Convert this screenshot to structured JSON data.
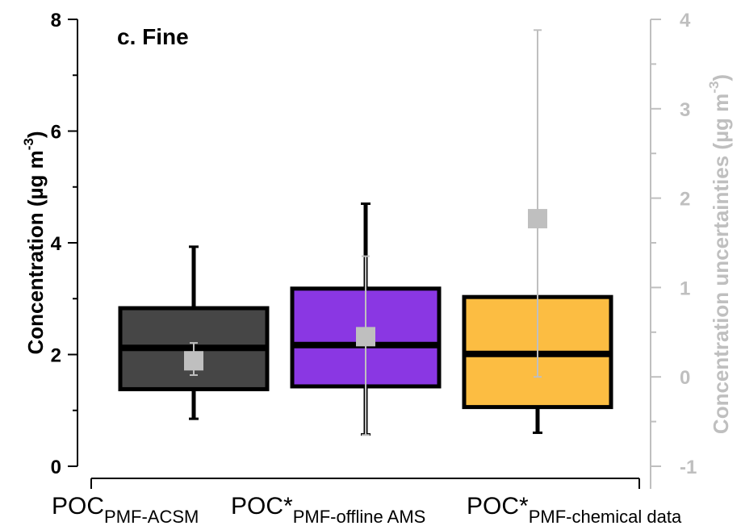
{
  "chart_data": {
    "type": "box",
    "panel_label": "c. Fine",
    "ylabel_left": {
      "main": "Concentration (µg m",
      "sup": "-3",
      "close": ")"
    },
    "ylabel_right": {
      "main": "Concentration uncertainties (µg m",
      "sup": "-3",
      "close": ")"
    },
    "ylim_left": [
      0,
      8
    ],
    "ylim_right": [
      -1,
      4
    ],
    "yticks_left": [
      "0",
      "2",
      "4",
      "6",
      "8"
    ],
    "yticks_right": [
      "-1",
      "0",
      "1",
      "2",
      "3",
      "4"
    ],
    "categories": [
      {
        "main": "POC",
        "sub": "PMF-ACSM"
      },
      {
        "main": "POC*",
        "sub": "PMF-offline AMS"
      },
      {
        "main": "POC*",
        "sub": "PMF-chemical data"
      }
    ],
    "boxes": [
      {
        "whisker_low": 0.85,
        "q1": 1.38,
        "median": 2.12,
        "q3": 2.83,
        "whisker_high": 3.93,
        "color": "#464646"
      },
      {
        "whisker_low": 0.57,
        "q1": 1.43,
        "median": 2.17,
        "q3": 3.18,
        "whisker_high": 4.7,
        "color": "#8a37e3"
      },
      {
        "whisker_low": 0.6,
        "q1": 1.06,
        "median": 2.01,
        "q3": 3.03,
        "whisker_high": null,
        "color": "#fcbd42"
      }
    ],
    "uncertainty": [
      {
        "value": 0.18,
        "low": 0.02,
        "high": 0.38
      },
      {
        "value": 0.45,
        "low": -0.65,
        "high": 1.35
      },
      {
        "value": 1.77,
        "low": 0.0,
        "high": 3.88
      }
    ],
    "uncertainty_color": "#bfbfbf"
  }
}
